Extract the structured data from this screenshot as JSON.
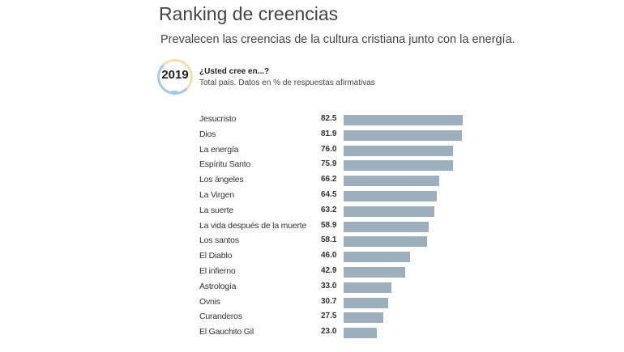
{
  "header": {
    "title": "Ranking de creencias",
    "subtitle": "Prevalecen las creencias de la cultura cristiana junto con la energía."
  },
  "badge": {
    "year": "2019",
    "question": "¿Usted cree en...?",
    "note": "Total país. Datos en % de respuestas afirmativas"
  },
  "colors": {
    "bar": "#9dafbd"
  },
  "chart_data": {
    "type": "bar",
    "orientation": "horizontal",
    "title": "Ranking de creencias",
    "xlabel": "",
    "ylabel": "% de respuestas afirmativas",
    "xlim": [
      0,
      100
    ],
    "categories": [
      "Jesucristo",
      "Dios",
      "La energía",
      "Espíritu Santo",
      "Los ángeles",
      "La Virgen",
      "La suerte",
      "La vida después de la muerte",
      "Los santos",
      "El Diablo",
      "El infierno",
      "Astrología",
      "Ovnis",
      "Curanderos",
      "El Gauchito Gil"
    ],
    "values": [
      82.5,
      81.9,
      76.0,
      75.9,
      66.2,
      64.5,
      63.2,
      58.9,
      58.1,
      46.0,
      42.9,
      33.0,
      30.7,
      27.5,
      23.0
    ],
    "labels": [
      "82.5",
      "81.9",
      "76.0",
      "75.9",
      "66.2",
      "64.5",
      "63.2",
      "58.9",
      "58.1",
      "46.0",
      "42.9",
      "33.0",
      "30.7",
      "27.5",
      "23.0"
    ]
  }
}
